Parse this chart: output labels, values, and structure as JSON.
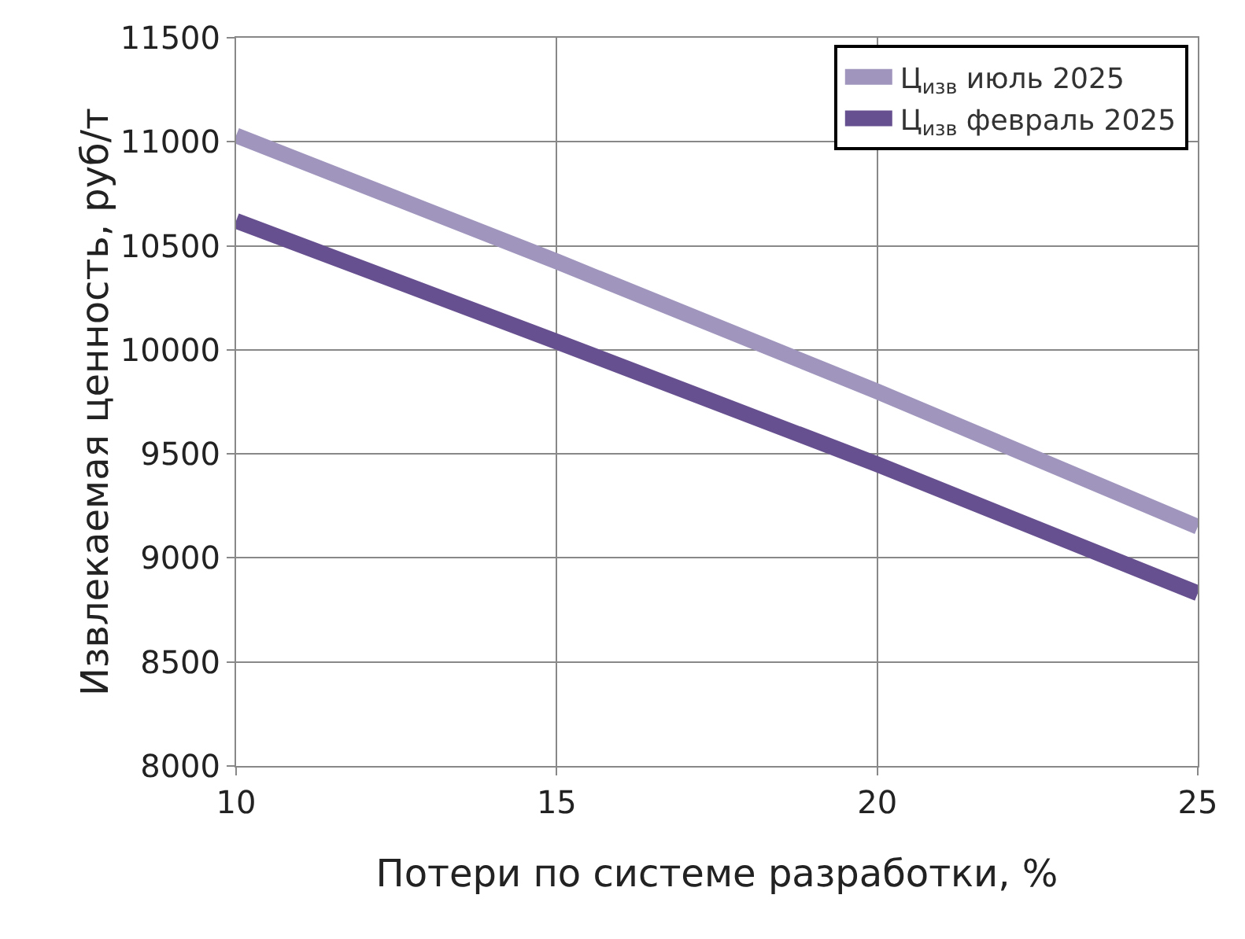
{
  "chart_data": {
    "type": "line",
    "xlabel": "Потери по системе разработки, %",
    "ylabel": "Извлекаемая ценность, руб/т",
    "x": [
      10,
      15,
      20,
      25
    ],
    "series": [
      {
        "name": "Ц$_{изв}$ июль 2025",
        "color": "#a095bd",
        "values": [
          11030,
          10425,
          9800,
          9150
        ]
      },
      {
        "name": "Ц$_{изв}$ февраль 2025",
        "color": "#67508f",
        "values": [
          10620,
          10040,
          9450,
          8830
        ]
      }
    ],
    "xlim": [
      10,
      25
    ],
    "xticks": [
      10,
      15,
      20,
      25
    ],
    "ylim": [
      8000,
      11500
    ],
    "yticks": [
      8000,
      8500,
      9000,
      9500,
      10000,
      10500,
      11000,
      11500
    ],
    "grid": true,
    "legend": "top right",
    "marker": "none",
    "line_style": "solid"
  }
}
